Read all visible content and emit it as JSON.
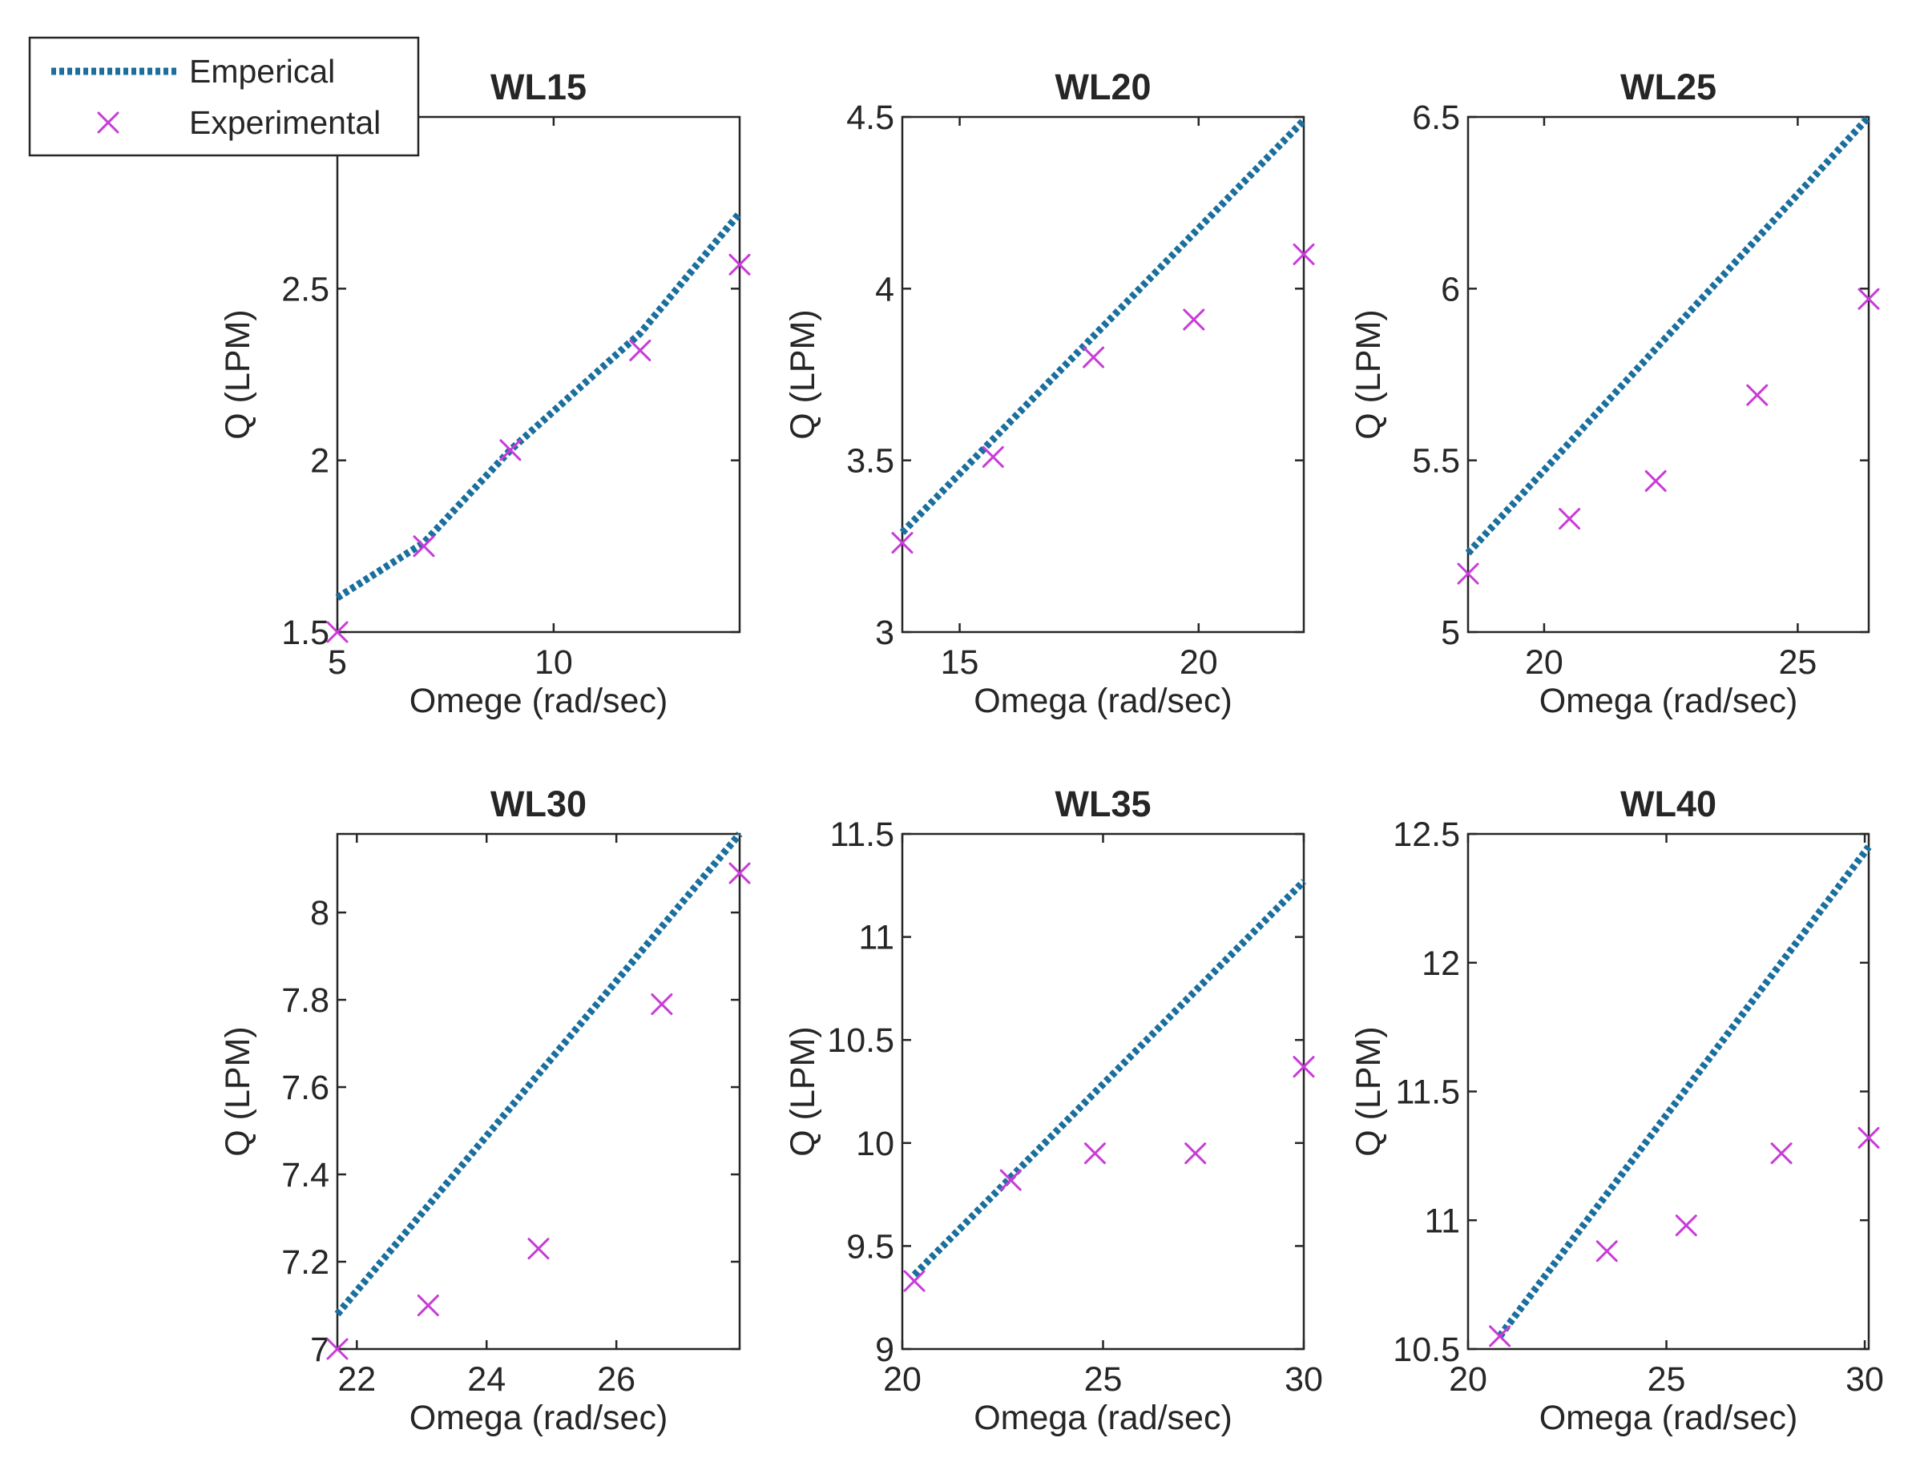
{
  "legend": {
    "entries": [
      {
        "label": "Emperical",
        "style": "dotted-line",
        "color": "#1a6f9e"
      },
      {
        "label": "Experimental",
        "style": "x-marker",
        "color": "#c93bd8"
      }
    ]
  },
  "chart_data": [
    {
      "type": "line",
      "title": "WL15",
      "xlabel": "Omege (rad/sec)",
      "ylabel": "Q (LPM)",
      "xlim": [
        5,
        14.3
      ],
      "ylim": [
        1.5,
        3.0
      ],
      "xticks": [
        5,
        10
      ],
      "yticks": [
        1.5,
        2,
        2.5
      ],
      "ytick_labels": [
        "1.5",
        "2",
        "2.5"
      ],
      "series": [
        {
          "name": "Emperical",
          "x": [
            5,
            7,
            9,
            12,
            14.3
          ],
          "y": [
            1.6,
            1.76,
            2.03,
            2.37,
            2.72
          ]
        },
        {
          "name": "Experimental",
          "x": [
            5,
            7,
            9,
            12,
            14.3
          ],
          "y": [
            1.5,
            1.75,
            2.03,
            2.32,
            2.57
          ]
        }
      ]
    },
    {
      "type": "line",
      "title": "WL20",
      "xlabel": "Omega (rad/sec)",
      "ylabel": "Q (LPM)",
      "xlim": [
        13.8,
        22.2
      ],
      "ylim": [
        3,
        4.5
      ],
      "xticks": [
        15,
        20
      ],
      "yticks": [
        3,
        3.5,
        4,
        4.5
      ],
      "ytick_labels": [
        "3",
        "3.5",
        "4",
        "4.5"
      ],
      "series": [
        {
          "name": "Emperical",
          "x": [
            13.8,
            22.2
          ],
          "y": [
            3.29,
            4.49
          ]
        },
        {
          "name": "Experimental",
          "x": [
            13.8,
            15.7,
            17.8,
            19.9,
            22.2
          ],
          "y": [
            3.26,
            3.51,
            3.8,
            3.91,
            4.1
          ]
        }
      ]
    },
    {
      "type": "line",
      "title": "WL25",
      "xlabel": "Omega (rad/sec)",
      "ylabel": "Q (LPM)",
      "xlim": [
        18.5,
        26.4
      ],
      "ylim": [
        5,
        6.5
      ],
      "xticks": [
        20,
        25
      ],
      "yticks": [
        5,
        5.5,
        6,
        6.5
      ],
      "ytick_labels": [
        "5",
        "5.5",
        "6",
        "6.5"
      ],
      "series": [
        {
          "name": "Emperical",
          "x": [
            18.5,
            26.4
          ],
          "y": [
            5.23,
            6.5
          ]
        },
        {
          "name": "Experimental",
          "x": [
            18.5,
            20.5,
            22.2,
            24.2,
            26.4
          ],
          "y": [
            5.17,
            5.33,
            5.44,
            5.69,
            5.97
          ]
        }
      ]
    },
    {
      "type": "line",
      "title": "WL30",
      "xlabel": "Omega (rad/sec)",
      "ylabel": "Q (LPM)",
      "xlim": [
        21.7,
        27.9
      ],
      "ylim": [
        7,
        8.18
      ],
      "xticks": [
        22,
        24,
        26
      ],
      "yticks": [
        7,
        7.2,
        7.4,
        7.6,
        7.8,
        8
      ],
      "ytick_labels": [
        "7",
        "7.2",
        "7.4",
        "7.6",
        "7.8",
        "8"
      ],
      "series": [
        {
          "name": "Emperical",
          "x": [
            21.7,
            27.9
          ],
          "y": [
            7.08,
            8.18
          ]
        },
        {
          "name": "Experimental",
          "x": [
            21.7,
            23.1,
            24.8,
            26.7,
            27.9
          ],
          "y": [
            7.0,
            7.1,
            7.23,
            7.79,
            8.09
          ]
        }
      ]
    },
    {
      "type": "line",
      "title": "WL35",
      "xlabel": "Omega (rad/sec)",
      "ylabel": "Q (LPM)",
      "xlim": [
        20,
        30
      ],
      "ylim": [
        9,
        11.5
      ],
      "xticks": [
        20,
        25,
        30
      ],
      "yticks": [
        9,
        9.5,
        10,
        10.5,
        11,
        11.5
      ],
      "ytick_labels": [
        "9",
        "9.5",
        "10",
        "10.5",
        "11",
        "11.5"
      ],
      "series": [
        {
          "name": "Emperical",
          "x": [
            20.3,
            30
          ],
          "y": [
            9.36,
            11.27
          ]
        },
        {
          "name": "Experimental",
          "x": [
            20.3,
            22.7,
            24.8,
            27.3,
            30
          ],
          "y": [
            9.33,
            9.82,
            9.95,
            9.95,
            10.37
          ]
        }
      ]
    },
    {
      "type": "line",
      "title": "WL40",
      "xlabel": "Omega (rad/sec)",
      "ylabel": "Q (LPM)",
      "xlim": [
        20,
        30.1
      ],
      "ylim": [
        10.5,
        12.5
      ],
      "xticks": [
        20,
        25,
        30
      ],
      "yticks": [
        10.5,
        11,
        11.5,
        12,
        12.5
      ],
      "ytick_labels": [
        "10.5",
        "11",
        "11.5",
        "12",
        "12.5"
      ],
      "series": [
        {
          "name": "Emperical",
          "x": [
            20.8,
            30.1
          ],
          "y": [
            10.55,
            12.45
          ]
        },
        {
          "name": "Experimental",
          "x": [
            20.8,
            23.5,
            25.5,
            27.9,
            30.1
          ],
          "y": [
            10.55,
            10.88,
            10.98,
            11.26,
            11.32
          ]
        }
      ]
    }
  ]
}
